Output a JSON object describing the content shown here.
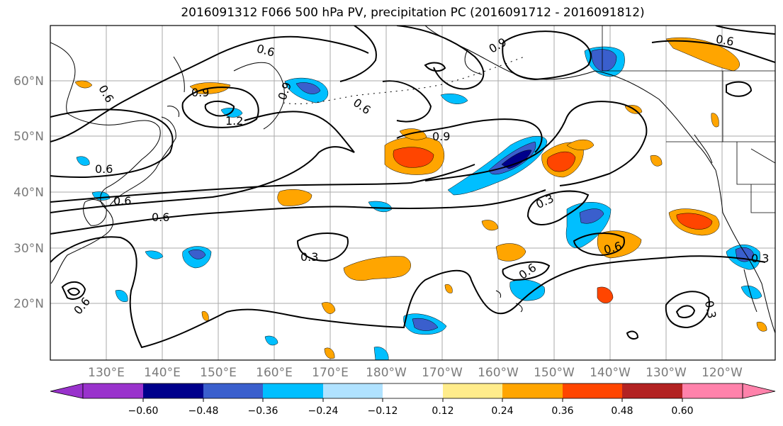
{
  "title": "2016091312 F066 500 hPa PV, precipitation PC (2016091712 - 2016091812)",
  "map": {
    "region": "North Pacific",
    "lat_labels": [
      "60°N",
      "50°N",
      "40°N",
      "30°N",
      "20°N"
    ],
    "lon_labels": [
      "130°E",
      "140°E",
      "150°E",
      "160°E",
      "170°E",
      "180°W",
      "170°W",
      "160°W",
      "150°W",
      "140°W",
      "130°W",
      "120°W"
    ],
    "gridlines": true,
    "contour_labels": [
      "0.6",
      "0.9",
      "0.9",
      "0.6",
      "0.9",
      "1.2",
      "0.6",
      "0.9",
      "0.6",
      "0.6",
      "0.6",
      "0.3",
      "0.3",
      "0.6",
      "0.6",
      "0.3",
      "0.3",
      "0.6",
      "0.6"
    ]
  },
  "colorbar": {
    "ticks": [
      "−0.60",
      "−0.48",
      "−0.36",
      "−0.24",
      "−0.12",
      "0.12",
      "0.24",
      "0.36",
      "0.48",
      "0.60"
    ],
    "colors": [
      "#9932cc",
      "#00008b",
      "#3a5fcd",
      "#00bfff",
      "#b0e2ff",
      "#ffffff",
      "#ffec8b",
      "#ffa500",
      "#ff4500",
      "#b22222",
      "#ff82ab"
    ]
  }
}
